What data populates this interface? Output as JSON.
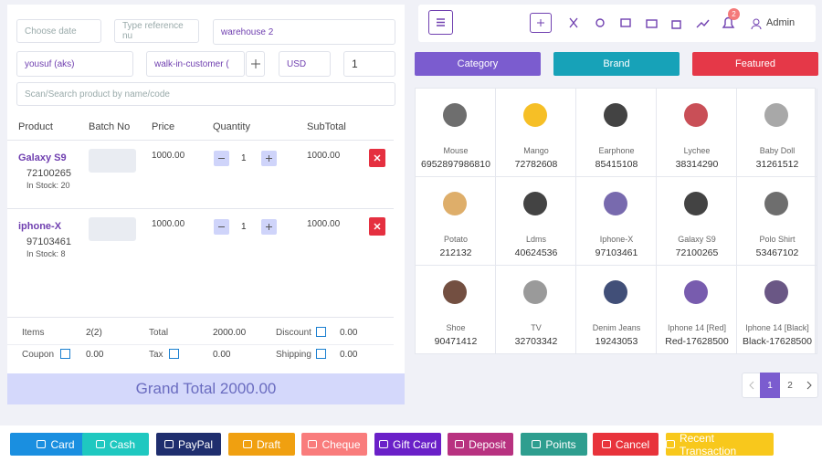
{
  "filters": {
    "date": "Choose date",
    "reference": "Type reference nu",
    "warehouse": "warehouse 2",
    "customer": "yousuf (aks)",
    "customer_type": "walk-in-customer (",
    "currency": "USD",
    "quantity": "1",
    "search": "Scan/Search product by name/code"
  },
  "table": {
    "headers": [
      "Product",
      "Batch No",
      "Price",
      "Quantity",
      "SubTotal"
    ],
    "rows": [
      {
        "name": "Galaxy S9",
        "code": "72100265",
        "stock": "In Stock: 20",
        "price": "1000.00",
        "qty": "1",
        "subtotal": "1000.00"
      },
      {
        "name": "iphone-X",
        "code": "97103461",
        "stock": "In Stock: 8",
        "price": "1000.00",
        "qty": "1",
        "subtotal": "1000.00"
      }
    ]
  },
  "summary": [
    [
      "Items",
      "2(2)"
    ],
    [
      "Total",
      "2000.00"
    ],
    [
      "Discount",
      "0.00"
    ],
    [
      "Coupon",
      "0.00"
    ],
    [
      "Tax",
      "0.00"
    ],
    [
      "Shipping",
      "0.00"
    ]
  ],
  "grand_total": "Grand Total 2000.00",
  "header": {
    "notifications": "2",
    "user": "Admin"
  },
  "tabs": [
    "Category",
    "Brand",
    "Featured"
  ],
  "products": [
    {
      "name": "Mouse",
      "code": "6952897986810"
    },
    {
      "name": "Mango",
      "code": "72782608"
    },
    {
      "name": "Earphone",
      "code": "85415108"
    },
    {
      "name": "Lychee",
      "code": "38314290"
    },
    {
      "name": "Baby Doll",
      "code": "31261512"
    },
    {
      "name": "Potato",
      "code": "212132"
    },
    {
      "name": "Ldms",
      "code": "40624536"
    },
    {
      "name": "Iphone-X",
      "code": "97103461"
    },
    {
      "name": "Galaxy S9",
      "code": "72100265"
    },
    {
      "name": "Polo Shirt",
      "code": "53467102"
    },
    {
      "name": "Shoe",
      "code": "90471412"
    },
    {
      "name": "TV",
      "code": "32703342"
    },
    {
      "name": "Denim Jeans",
      "code": "19243053"
    },
    {
      "name": "Iphone 14 [Red]",
      "code": "Red-17628500"
    },
    {
      "name": "Iphone 14 [Black]",
      "code": "Black-17628500"
    }
  ],
  "pagination": [
    "1",
    "2"
  ],
  "actions": [
    "Card",
    "Cash",
    "PayPal",
    "Draft",
    "Cheque",
    "Gift Card",
    "Deposit",
    "Points",
    "Cancel",
    "Recent Transaction"
  ]
}
